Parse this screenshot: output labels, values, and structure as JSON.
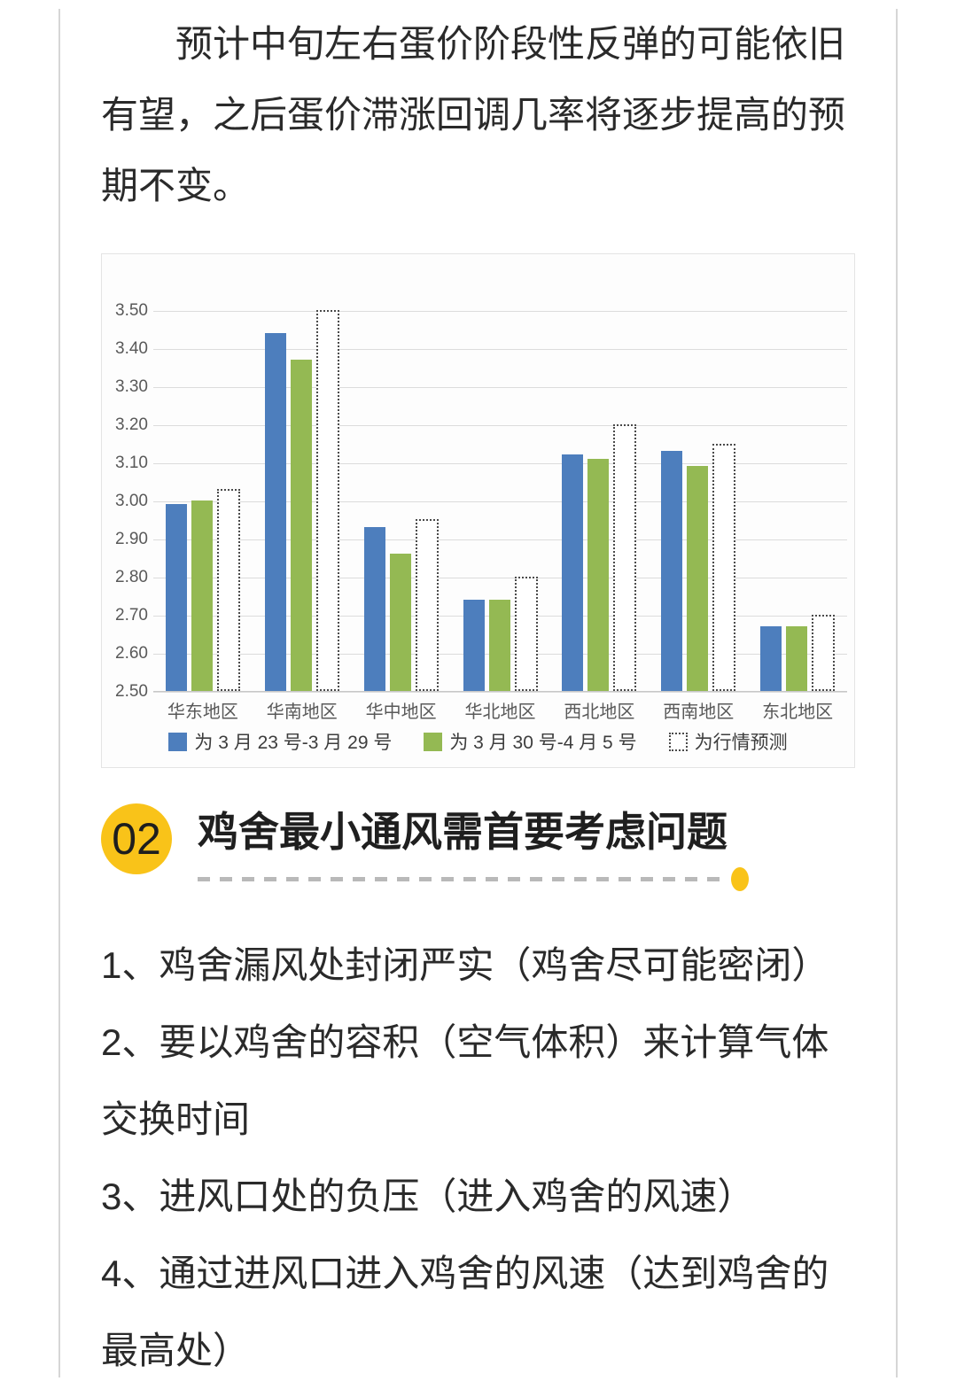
{
  "page": {
    "lead_paragraph": "预计中旬左右蛋价阶段性反弹的可能依旧有望，之后蛋价滞涨回调几率将逐步提高的预期不变。",
    "section": {
      "number": "02",
      "title": "鸡舍最小通风需首要考虑问题"
    },
    "points": [
      "1、鸡舍漏风处封闭严实（鸡舍尽可能密闭）",
      "2、要以鸡舍的容积（空气体积）来计算气体交换时间",
      "3、进风口处的负压（进入鸡舍的风速）",
      "4、通过进风口进入鸡舍的风速（达到鸡舍的最高处）"
    ]
  },
  "theme": {
    "accent_yellow": "#f9c319",
    "body_text": "#2a2a2a",
    "rule_gray": "#d6d6d6"
  },
  "chart_data": {
    "type": "bar",
    "title": "",
    "categories": [
      "华东地区",
      "华南地区",
      "华中地区",
      "华北地区",
      "西北地区",
      "西南地区",
      "东北地区"
    ],
    "series": [
      {
        "name": "为 3 月 23 号-3 月 29 号",
        "color": "#4d7ebd",
        "style": "solid",
        "values": [
          2.99,
          3.44,
          2.93,
          2.74,
          3.12,
          3.13,
          2.67
        ]
      },
      {
        "name": "为 3 月 30 号-4 月 5 号",
        "color": "#94b953",
        "style": "solid",
        "values": [
          3.0,
          3.37,
          2.86,
          2.74,
          3.11,
          3.09,
          2.67
        ]
      },
      {
        "name": "为行情预测",
        "color": "#ffffff",
        "style": "dashed-outline",
        "values": [
          3.03,
          3.5,
          2.95,
          2.8,
          3.2,
          3.15,
          2.7
        ]
      }
    ],
    "xlabel": "",
    "ylabel": "",
    "ylim": [
      2.5,
      3.5
    ],
    "ytick_step": 0.1,
    "yticks": [
      "3.50",
      "3.40",
      "3.30",
      "3.20",
      "3.10",
      "3.00",
      "2.90",
      "2.80",
      "2.70",
      "2.60",
      "2.50"
    ],
    "grid": true,
    "legend_position": "bottom"
  }
}
